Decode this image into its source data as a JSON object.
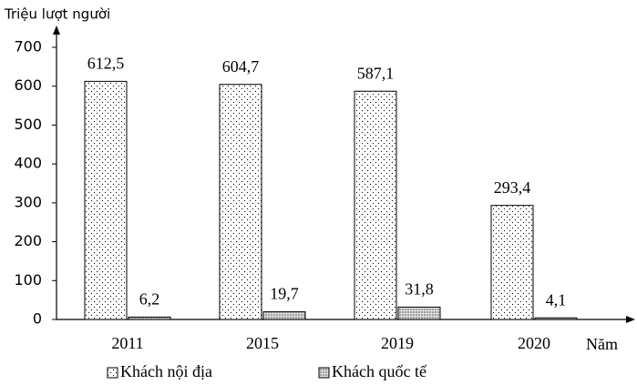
{
  "chart_data": {
    "type": "bar",
    "y_label": "Triệu lượt người",
    "x_label": "Năm",
    "categories": [
      "2011",
      "2015",
      "2019",
      "2020"
    ],
    "series": [
      {
        "name": "Khách nội địa",
        "color": "#000000",
        "values": [
          612.5,
          604.7,
          587.1,
          293.4
        ],
        "value_labels": [
          "612,5",
          "604,7",
          "587,1",
          "293,4"
        ]
      },
      {
        "name": "Khách quốc tế",
        "color": "#555555",
        "values": [
          6.2,
          19.7,
          31.8,
          4.1
        ],
        "value_labels": [
          "6,2",
          "19,7",
          "31,8",
          "4,1"
        ]
      }
    ],
    "ylim": [
      0,
      700
    ],
    "yticks": [
      0,
      100,
      200,
      300,
      400,
      500,
      600,
      700
    ],
    "grid": false
  }
}
